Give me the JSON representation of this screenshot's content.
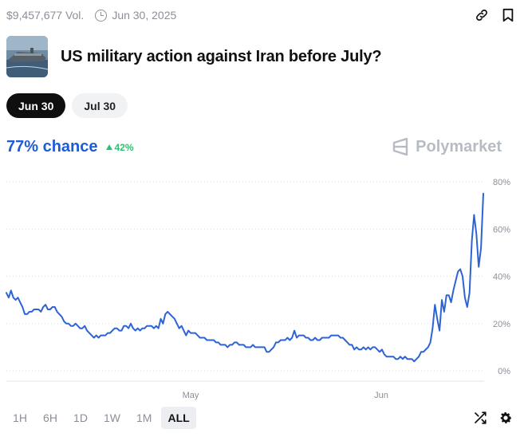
{
  "header": {
    "volume": "$9,457,677 Vol.",
    "date": "Jun 30, 2025",
    "icons": [
      "clock-icon",
      "link-icon",
      "bookmark-icon"
    ]
  },
  "market": {
    "title": "US military action against Iran before July?",
    "thumbnail": "aircraft-carrier-image"
  },
  "tabs": [
    {
      "label": "Jun 30",
      "active": true
    },
    {
      "label": "Jul 30",
      "active": false
    }
  ],
  "summary": {
    "chance": "77% chance",
    "delta": "42%",
    "delta_direction": "up",
    "brand": "Polymarket"
  },
  "colors": {
    "line": "#2e63d6",
    "chance": "#1e5bd6",
    "delta": "#2fbf71",
    "brand": "#b7bcc4"
  },
  "chart_data": {
    "type": "line",
    "title": "",
    "xlabel": "",
    "ylabel": "",
    "ylim": [
      0,
      80
    ],
    "y_ticks": [
      "80%",
      "60%",
      "40%",
      "20%",
      "0%"
    ],
    "x_tick_labels": [
      "May",
      "Jun"
    ],
    "grid": true,
    "series": [
      {
        "values": [
          33,
          31,
          34,
          31,
          30,
          31,
          29,
          27,
          24,
          24,
          25,
          25,
          26,
          26,
          26,
          25,
          27,
          28,
          26,
          26,
          27,
          27,
          25,
          24,
          23,
          21,
          20,
          20,
          19,
          19,
          20,
          19,
          18,
          18,
          19,
          17,
          16,
          15,
          14,
          15,
          14,
          15,
          15,
          15,
          16,
          16,
          17,
          18,
          18,
          17,
          17,
          19,
          19,
          18,
          20,
          18,
          17,
          18,
          17,
          18,
          18,
          19,
          19,
          19,
          18,
          19,
          18,
          22,
          20,
          24,
          25,
          24,
          23,
          22,
          20,
          18,
          19,
          17,
          15,
          17,
          16,
          16,
          16,
          15,
          14,
          14,
          14,
          13,
          13,
          13,
          13,
          12,
          12,
          11,
          11,
          11,
          10,
          11,
          11,
          12,
          12,
          11,
          11,
          11,
          10,
          10,
          10,
          11,
          10,
          10,
          10,
          10,
          10,
          8,
          8,
          9,
          10,
          12,
          12,
          13,
          13,
          13,
          14,
          13,
          14,
          17,
          14,
          15,
          15,
          15,
          14,
          14,
          13,
          13,
          14,
          13,
          13,
          14,
          14,
          14,
          14,
          15,
          15,
          15,
          15,
          14,
          14,
          13,
          12,
          11,
          11,
          9,
          10,
          9,
          9,
          10,
          9,
          10,
          9,
          10,
          10,
          9,
          8,
          9,
          7,
          6,
          6,
          6,
          6,
          5,
          5,
          6,
          5,
          6,
          5,
          5,
          5,
          4,
          5,
          6,
          8,
          8,
          9,
          10,
          12,
          18,
          28,
          22,
          17,
          30,
          25,
          32,
          32,
          29,
          34,
          38,
          42,
          43,
          40,
          31,
          27,
          33,
          55,
          66,
          58,
          44,
          52,
          75
        ]
      }
    ]
  },
  "time_ranges": [
    {
      "label": "1H",
      "active": false
    },
    {
      "label": "6H",
      "active": false
    },
    {
      "label": "1D",
      "active": false
    },
    {
      "label": "1W",
      "active": false
    },
    {
      "label": "1M",
      "active": false
    },
    {
      "label": "ALL",
      "active": true
    }
  ],
  "controls": [
    "shuffle-icon",
    "settings-icon"
  ]
}
